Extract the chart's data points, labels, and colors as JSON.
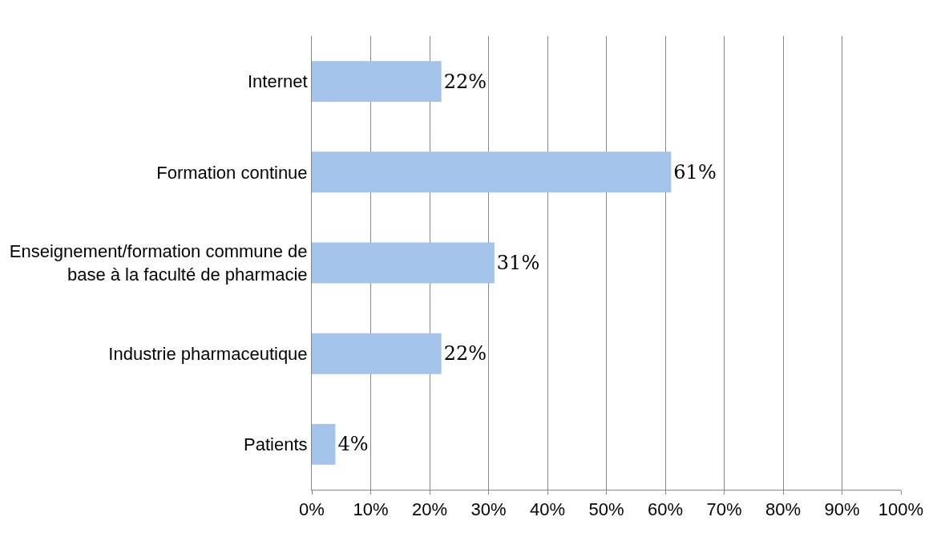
{
  "chart_data": {
    "type": "bar",
    "orientation": "horizontal",
    "categories": [
      "Internet",
      "Formation continue",
      "Enseignement/formation commune de base à la faculté de pharmacie",
      "Industrie pharmaceutique",
      "Patients"
    ],
    "values": [
      22,
      61,
      31,
      22,
      4
    ],
    "value_labels": [
      "22%",
      "61%",
      "31%",
      "22%",
      "4%"
    ],
    "color": "#a3c3ea",
    "xlim": [
      0,
      100
    ],
    "xticks": [
      {
        "value": 0,
        "label": "0%"
      },
      {
        "value": 10,
        "label": "10%"
      },
      {
        "value": 20,
        "label": "20%"
      },
      {
        "value": 30,
        "label": "30%"
      },
      {
        "value": 40,
        "label": "40%"
      },
      {
        "value": 50,
        "label": "50%"
      },
      {
        "value": 60,
        "label": "60%"
      },
      {
        "value": 70,
        "label": "70%"
      },
      {
        "value": 80,
        "label": "80%"
      },
      {
        "value": 90,
        "label": "90%"
      },
      {
        "value": 100,
        "label": "100%"
      }
    ],
    "grid": "x"
  }
}
